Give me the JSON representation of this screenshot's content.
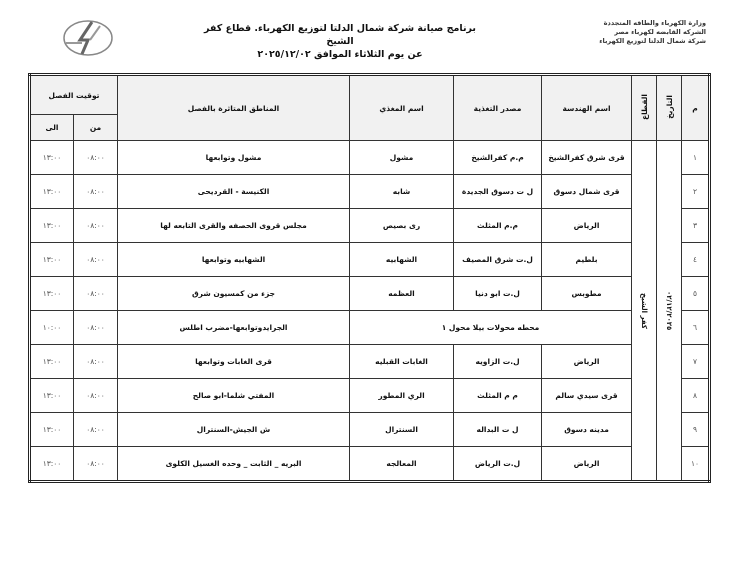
{
  "header": {
    "ministry_lines": [
      "وزارة الكهرباء والطاقه المتجددة",
      "الشركه القابضه لكهرباء مصر",
      "شركة شمال الدلتا لتوزيع الكهرباء"
    ],
    "title": "برنامج صيانة شركة شمال الدلتا لتوزيع الكهرباء. قطاع كفر الشيخ",
    "subtitle": "عن يوم الثلاثاء الموافق ٢٠٢٥/١٢/٠٢"
  },
  "table": {
    "headers": {
      "num": "م",
      "date": "التاريخ",
      "sector": "القطاع",
      "engineering": "اسم الهندسة",
      "source": "مصدر التغذية",
      "feeder": "اسم المغذي",
      "areas": "المناطق المتاثرة بالفصل",
      "time": "توقيت الفصل",
      "from": "من",
      "to": "الى"
    },
    "date": "٠٢/١٢/٢٠٢٥",
    "sector": "كفر الشيخ",
    "rows": [
      {
        "num": "١",
        "engineering": "قرى شرق كفرالشيخ",
        "source": "م.م كفرالشيخ",
        "feeder": "مشول",
        "areas": "مشول وتوابعها",
        "from": "٠٨:٠٠",
        "to": "١٣:٠٠"
      },
      {
        "num": "٢",
        "engineering": "قرى شمال دسوق",
        "source": "ل ت دسوق الجديدة",
        "feeder": "شابه",
        "areas": "الكنيسة - القرديحى",
        "from": "٠٨:٠٠",
        "to": "١٣:٠٠"
      },
      {
        "num": "٣",
        "engineering": "الرياض",
        "source": "م.م المثلث",
        "feeder": "رى بصيص",
        "areas": "مجلس قروى الحصفه والقرى التابعه لها",
        "from": "٠٨:٠٠",
        "to": "١٣:٠٠"
      },
      {
        "num": "٤",
        "engineering": "بلطيم",
        "source": "ل.ت شرق المصيف",
        "feeder": "الشهابيه",
        "areas": "الشهابيه وتوابعها",
        "from": "٠٨:٠٠",
        "to": "١٣:٠٠"
      },
      {
        "num": "٥",
        "engineering": "مطوبس",
        "source": "ل.ت ابو دنيا",
        "feeder": "العظمه",
        "areas": "جزء من كمسيون شرق",
        "from": "٠٨:٠٠",
        "to": "١٣:٠٠"
      },
      {
        "num": "٦",
        "merged": "محطه محولات بيلا محول ١",
        "areas": "الجرايدوتوابعها-مضرب اطلس",
        "from": "٠٨:٠٠",
        "to": "١٠:٠٠"
      },
      {
        "num": "٧",
        "engineering": "الرياض",
        "source": "ل.ت الزاويه",
        "feeder": "الغابات القبليه",
        "areas": "قرى الغابات وتوابعها",
        "from": "٠٨:٠٠",
        "to": "١٣:٠٠"
      },
      {
        "num": "٨",
        "engineering": "قرى سيدي سالم",
        "source": "م م المثلث",
        "feeder": "الري المطور",
        "areas": "المفتي شلما-ابو صالح",
        "from": "٠٨:٠٠",
        "to": "١٣:٠٠"
      },
      {
        "num": "٩",
        "engineering": "مدينه دسوق",
        "source": "ل ت البداله",
        "feeder": "السنترال",
        "areas": "ش الجيش-السنترال",
        "from": "٠٨:٠٠",
        "to": "١٣:٠٠"
      },
      {
        "num": "١٠",
        "engineering": "الرياض",
        "source": "ل.ت الرياض",
        "feeder": "المعالجه",
        "areas": "البريه _ الثابت _ وحده الغسيل الكلوى",
        "from": "٠٨:٠٠",
        "to": "١٣:٠٠"
      }
    ]
  }
}
